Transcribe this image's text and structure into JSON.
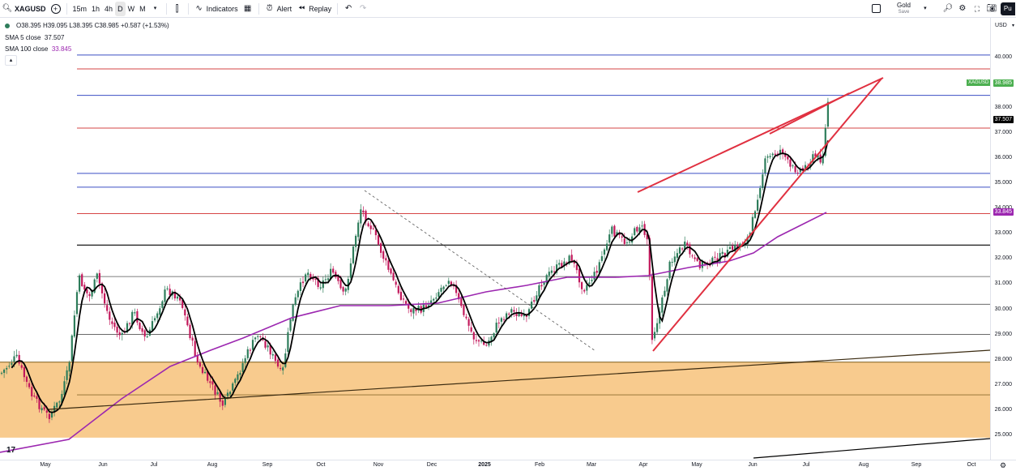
{
  "toolbar": {
    "symbol": "XAGUSD",
    "intervals": [
      "15m",
      "1h",
      "4h",
      "D",
      "W",
      "M"
    ],
    "active_interval": "D",
    "indicators_label": "Indicators",
    "alert_label": "Alert",
    "replay_label": "Replay",
    "layout_name": "Gold",
    "save_label": "Save",
    "profile_button": "Pu"
  },
  "legend": {
    "ohlc": {
      "o_label": "O",
      "o": "38.395",
      "h_label": "H",
      "h": "39.095",
      "l_label": "L",
      "l": "38.395",
      "c_label": "C",
      "c": "38.985",
      "change": "+0.587 (+1.53%)"
    },
    "sma5": {
      "label": "SMA 5 close",
      "value": "37.507"
    },
    "sma100": {
      "label": "SMA 100 close",
      "value": "33.845"
    }
  },
  "currency": "USD",
  "price_tags": {
    "symbol": {
      "label": "XAGUSD",
      "value": "38.985"
    },
    "sma5": {
      "value": "37.507"
    },
    "sma100": {
      "value": "33.845"
    }
  },
  "colors": {
    "up": "#2e7d5b",
    "down": "#c2185b",
    "sma5": "#000000",
    "sma100": "#9c27b0",
    "trend": "#e03040",
    "blue_level": "#3b4fc4",
    "red_level": "#d64545",
    "zone": "#f7c27a"
  },
  "chart_data": {
    "type": "candlestick",
    "y_ticks": [
      "40.000",
      "39.000",
      "38.000",
      "37.000",
      "36.000",
      "35.000",
      "34.000",
      "33.000",
      "32.000",
      "31.000",
      "30.000",
      "29.000",
      "28.000",
      "27.000",
      "26.000",
      "25.000"
    ],
    "x_ticks": [
      "May",
      "Jun",
      "Jul",
      "Aug",
      "Sep",
      "Oct",
      "Nov",
      "Dec",
      "2025",
      "Feb",
      "Mar",
      "Apr",
      "May",
      "Jun",
      "Jul",
      "Aug",
      "Sep",
      "Oct"
    ],
    "ylim": [
      24.8,
      41.1
    ],
    "last_close": 38.985,
    "blue_levels": [
      40.1,
      38.5,
      35.4,
      34.85
    ],
    "red_levels": [
      39.55,
      37.2,
      33.8
    ],
    "black_levels": [
      32.55,
      31.3,
      30.2,
      29.0
    ],
    "zone": {
      "top": 27.9,
      "bottom": 24.9,
      "inner_line": 26.6
    }
  }
}
